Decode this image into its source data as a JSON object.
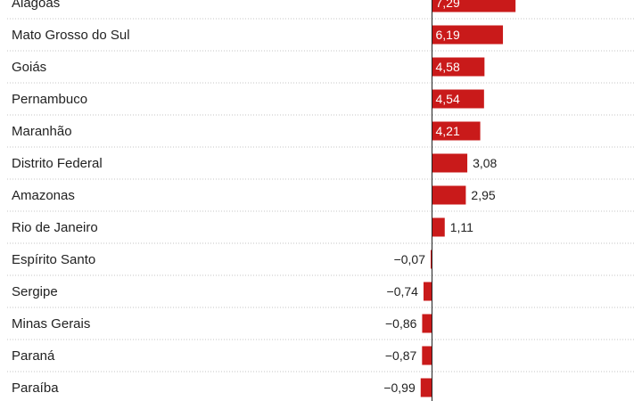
{
  "chart_data": {
    "type": "bar",
    "orientation": "horizontal",
    "title": "",
    "xlabel": "",
    "ylabel": "",
    "categories": [
      "Alagoas",
      "Mato Grosso do Sul",
      "Goiás",
      "Pernambuco",
      "Maranhão",
      "Distrito Federal",
      "Amazonas",
      "Rio de Janeiro",
      "Espírito Santo",
      "Sergipe",
      "Minas Gerais",
      "Paraná",
      "Paraíba"
    ],
    "values": [
      7.29,
      6.19,
      4.58,
      4.54,
      4.21,
      3.08,
      2.95,
      1.11,
      -0.07,
      -0.74,
      -0.86,
      -0.87,
      -0.99
    ],
    "labels": [
      "7,29",
      "6,19",
      "4,58",
      "4,54",
      "4,21",
      "3,08",
      "2,95",
      "1,11",
      "−0,07",
      "−0,74",
      "−0,86",
      "−0,87",
      "−0,99"
    ],
    "bar_color": "#c91a1a",
    "gridlines": "dotted",
    "legend": "none"
  }
}
